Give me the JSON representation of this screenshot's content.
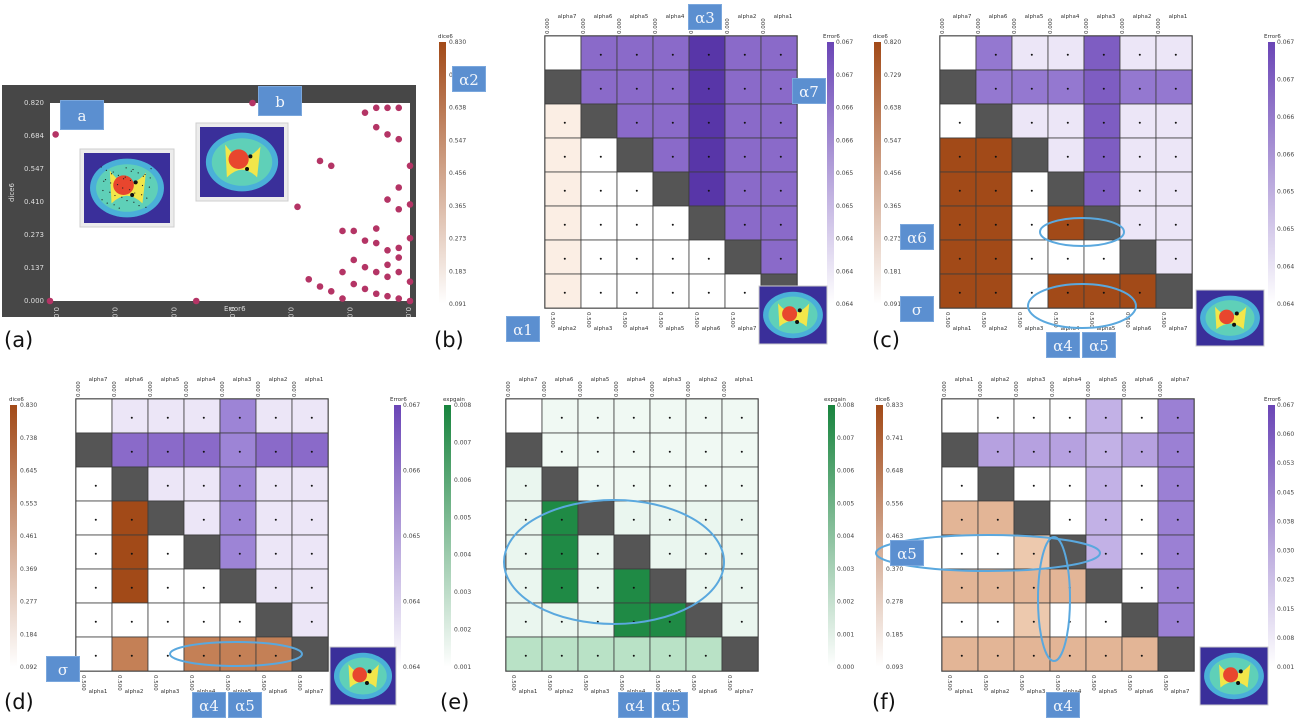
{
  "panels": [
    {
      "id": "a",
      "letter": "(a)"
    },
    {
      "id": "b",
      "letter": "(b)"
    },
    {
      "id": "c",
      "letter": "(c)"
    },
    {
      "id": "d",
      "letter": "(d)"
    },
    {
      "id": "e",
      "letter": "(e)"
    },
    {
      "id": "f",
      "letter": "(f)"
    }
  ],
  "chips": {
    "a_a": "a",
    "a_b": "b",
    "b_a2": "α2",
    "b_a3": "α3",
    "b_a7": "α7",
    "b_a1": "α1",
    "c_a6": "α6",
    "c_sig": "σ",
    "c_a4": "α4",
    "c_a5": "α5",
    "d_sig": "σ",
    "d_a4": "α4",
    "d_a5": "α5",
    "e_a4": "α4",
    "e_a5": "α5",
    "f_a5": "α5",
    "f_a4": "α4"
  },
  "colors": {
    "dice": "#a24a18",
    "error": "#6a45b6",
    "expgain": "#18843e",
    "frame": "#4a4a4a",
    "scatter_point": "#b43465",
    "highlight": "#5aa8de",
    "chip": "#5b8fd0"
  },
  "chart_data": [
    {
      "type": "scatter",
      "panel": "a",
      "xlabel": "Error6",
      "ylabel": "dice6",
      "x_ticks": [
        "0.064",
        "0.064",
        "0.065",
        "0.065",
        "0.066",
        "0.066",
        "0.067"
      ],
      "y_ticks": [
        "0.000",
        "0.137",
        "0.273",
        "0.410",
        "0.547",
        "0.684",
        "0.820"
      ],
      "xlim": [
        0.0639,
        0.0671
      ],
      "ylim": [
        0.0,
        0.82
      ],
      "points": [
        {
          "x": 0.0639,
          "y": 0.0
        },
        {
          "x": 0.06395,
          "y": 0.69
        },
        {
          "x": 0.0652,
          "y": 0.0
        },
        {
          "x": 0.0657,
          "y": 0.82
        },
        {
          "x": 0.0654,
          "y": 0.45
        },
        {
          "x": 0.0661,
          "y": 0.39
        },
        {
          "x": 0.0663,
          "y": 0.58
        },
        {
          "x": 0.0664,
          "y": 0.56
        },
        {
          "x": 0.0665,
          "y": 0.29
        },
        {
          "x": 0.0666,
          "y": 0.29
        },
        {
          "x": 0.0667,
          "y": 0.78
        },
        {
          "x": 0.0668,
          "y": 0.8
        },
        {
          "x": 0.0669,
          "y": 0.8
        },
        {
          "x": 0.067,
          "y": 0.8
        },
        {
          "x": 0.0668,
          "y": 0.72
        },
        {
          "x": 0.0669,
          "y": 0.69
        },
        {
          "x": 0.067,
          "y": 0.67
        },
        {
          "x": 0.0671,
          "y": 0.56
        },
        {
          "x": 0.067,
          "y": 0.47
        },
        {
          "x": 0.0669,
          "y": 0.42
        },
        {
          "x": 0.067,
          "y": 0.38
        },
        {
          "x": 0.0671,
          "y": 0.4
        },
        {
          "x": 0.0668,
          "y": 0.3
        },
        {
          "x": 0.0667,
          "y": 0.25
        },
        {
          "x": 0.0668,
          "y": 0.24
        },
        {
          "x": 0.0669,
          "y": 0.21
        },
        {
          "x": 0.067,
          "y": 0.22
        },
        {
          "x": 0.0666,
          "y": 0.17
        },
        {
          "x": 0.0667,
          "y": 0.14
        },
        {
          "x": 0.0668,
          "y": 0.12
        },
        {
          "x": 0.0669,
          "y": 0.1
        },
        {
          "x": 0.067,
          "y": 0.12
        },
        {
          "x": 0.0671,
          "y": 0.08
        },
        {
          "x": 0.0665,
          "y": 0.12
        },
        {
          "x": 0.0666,
          "y": 0.07
        },
        {
          "x": 0.0667,
          "y": 0.05
        },
        {
          "x": 0.0668,
          "y": 0.03
        },
        {
          "x": 0.0669,
          "y": 0.02
        },
        {
          "x": 0.067,
          "y": 0.01
        },
        {
          "x": 0.0671,
          "y": 0.0
        },
        {
          "x": 0.0664,
          "y": 0.04
        },
        {
          "x": 0.0665,
          "y": 0.01
        },
        {
          "x": 0.0662,
          "y": 0.09
        },
        {
          "x": 0.0663,
          "y": 0.06
        },
        {
          "x": 0.0669,
          "y": 0.15
        },
        {
          "x": 0.067,
          "y": 0.18
        },
        {
          "x": 0.0671,
          "y": 0.26
        }
      ]
    },
    {
      "type": "heatmap",
      "panel": "b",
      "colorbar_left": {
        "label": "dice6",
        "ticks": [
          "0.830",
          "0.739",
          "0.638",
          "0.547",
          "0.456",
          "0.365",
          "0.273",
          "0.183",
          "0.091"
        ]
      },
      "colorbar_right": {
        "label": "Error6",
        "ticks": [
          "0.067",
          "0.067",
          "0.066",
          "0.066",
          "0.065",
          "0.065",
          "0.064",
          "0.064",
          "0.064"
        ]
      },
      "axis_labels_top": [
        "alpha7",
        "alpha6",
        "alpha5",
        "alpha4",
        "alpha3",
        "alpha2",
        "alpha1"
      ],
      "axis_labels_bottom": [
        "alpha2",
        "alpha3",
        "alpha4",
        "alpha5",
        "alpha6",
        "alpha7"
      ]
    },
    {
      "type": "heatmap",
      "panel": "c",
      "colorbar_left": {
        "label": "dice6",
        "ticks": [
          "0.820",
          "0.729",
          "0.638",
          "0.547",
          "0.456",
          "0.365",
          "0.273",
          "0.181",
          "0.091"
        ]
      },
      "colorbar_right": {
        "label": "Error6",
        "ticks": [
          "0.067",
          "0.067",
          "0.066",
          "0.066",
          "0.065",
          "0.065",
          "0.064",
          "0.064"
        ]
      },
      "axis_labels_top": [
        "alpha7",
        "alpha6",
        "alpha5",
        "alpha4",
        "alpha3",
        "alpha2",
        "alpha1"
      ],
      "axis_labels_bottom": [
        "alpha1",
        "alpha2",
        "alpha3",
        "alpha4",
        "alpha5",
        "alpha6",
        "alpha7"
      ]
    },
    {
      "type": "heatmap",
      "panel": "d",
      "colorbar_left": {
        "label": "dice6",
        "ticks": [
          "0.830",
          "0.738",
          "0.645",
          "0.553",
          "0.461",
          "0.369",
          "0.277",
          "0.184",
          "0.092"
        ]
      },
      "colorbar_right": {
        "label": "Error6",
        "ticks": [
          "0.067",
          "0.066",
          "0.065",
          "0.064",
          "0.064"
        ]
      },
      "axis_labels_top": [
        "alpha7",
        "alpha6",
        "alpha5",
        "alpha4",
        "alpha3",
        "alpha2",
        "alpha1"
      ],
      "axis_labels_bottom": [
        "alpha1",
        "alpha2",
        "alpha3",
        "alpha4",
        "alpha5",
        "alpha6",
        "alpha7"
      ]
    },
    {
      "type": "heatmap",
      "panel": "e",
      "colorbar_left": {
        "label": "expgain",
        "ticks": [
          "0.008",
          "0.007",
          "0.006",
          "0.005",
          "0.004",
          "0.003",
          "0.002",
          "0.001"
        ]
      },
      "colorbar_right": {
        "label": "expgain",
        "ticks": [
          "0.008",
          "0.007",
          "0.006",
          "0.005",
          "0.004",
          "0.003",
          "0.002",
          "0.001",
          "0.000"
        ]
      },
      "axis_labels_top": [
        "alpha7",
        "alpha6",
        "alpha5",
        "alpha4",
        "alpha3",
        "alpha2",
        "alpha1"
      ],
      "axis_labels_bottom": [
        "alpha1",
        "alpha2",
        "alpha3",
        "alpha4",
        "alpha5",
        "alpha6",
        "alpha7"
      ]
    },
    {
      "type": "heatmap",
      "panel": "f",
      "colorbar_left": {
        "label": "dice6",
        "ticks": [
          "0.833",
          "0.741",
          "0.648",
          "0.556",
          "0.463",
          "0.370",
          "0.278",
          "0.185",
          "0.093"
        ]
      },
      "colorbar_right": {
        "label": "Error6",
        "ticks": [
          "0.067",
          "0.060",
          "0.053",
          "0.045",
          "0.038",
          "0.030",
          "0.023",
          "0.015",
          "0.008",
          "0.001"
        ]
      },
      "axis_labels_top": [
        "alpha1",
        "alpha2",
        "alpha3",
        "alpha4",
        "alpha5",
        "alpha6",
        "alpha7"
      ],
      "axis_labels_bottom": [
        "alpha1",
        "alpha2",
        "alpha3",
        "alpha4",
        "alpha5",
        "alpha6",
        "alpha7"
      ]
    }
  ]
}
